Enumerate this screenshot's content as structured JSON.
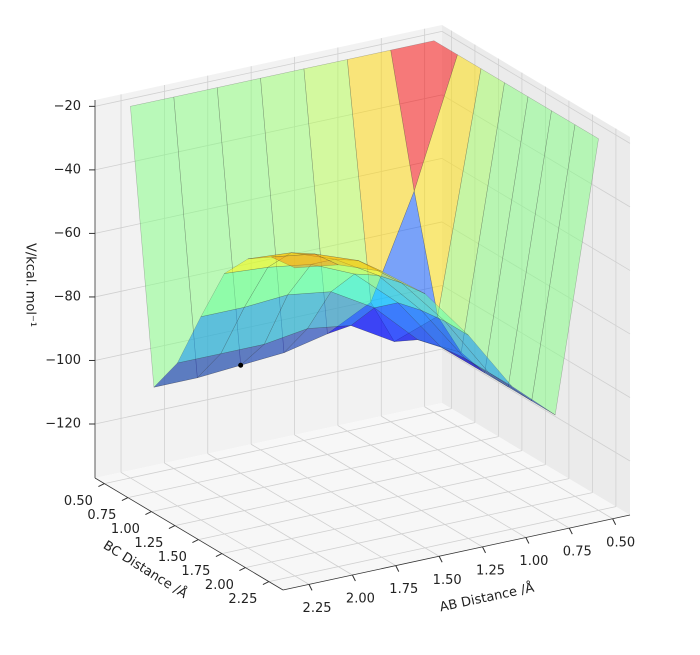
{
  "chart_data": {
    "type": "surface",
    "xlabel": "AB Distance /Å",
    "ylabel": "BC Distance /Å",
    "zlabel": "V/kcal. mol⁻¹",
    "colormap": "jet",
    "grid": true,
    "x": [
      0.5,
      0.75,
      1.0,
      1.25,
      1.5,
      1.75,
      2.0,
      2.25
    ],
    "y": [
      0.5,
      0.75,
      1.0,
      1.25,
      1.5,
      1.75,
      2.0,
      2.25
    ],
    "z": [
      [
        -20,
        -20,
        -20,
        -20,
        -20,
        -20,
        -20,
        -20
      ],
      [
        -20,
        -60,
        -95,
        -102,
        -104,
        -104,
        -104,
        -104
      ],
      [
        -20,
        -92,
        -100,
        -95,
        -93,
        -92,
        -92,
        -92
      ],
      [
        -20,
        -99,
        -92,
        -82,
        -76,
        -74,
        -73,
        -73
      ],
      [
        -20,
        -102,
        -90,
        -74,
        -64,
        -60,
        -58,
        -57
      ],
      [
        -20,
        -103,
        -92,
        -72,
        -58,
        -52,
        -48,
        -47
      ],
      [
        -20,
        -104,
        -92,
        -73,
        -56,
        -47,
        -43,
        -42
      ],
      [
        -20,
        -104,
        -92,
        -73,
        -55,
        -46,
        -41,
        -40
      ]
    ],
    "point": {
      "x": 1.75,
      "y": 0.75,
      "z": -103
    },
    "xlim": [
      0.4,
      2.4
    ],
    "ylim": [
      0.4,
      2.4
    ],
    "zlim": [
      -137,
      -18
    ],
    "xticks": [
      {
        "value": 0.5,
        "label": "0.50"
      },
      {
        "value": 0.75,
        "label": "0.75"
      },
      {
        "value": 1.0,
        "label": "1.00"
      },
      {
        "value": 1.25,
        "label": "1.25"
      },
      {
        "value": 1.5,
        "label": "1.50"
      },
      {
        "value": 1.75,
        "label": "1.75"
      },
      {
        "value": 2.0,
        "label": "2.00"
      },
      {
        "value": 2.25,
        "label": "2.25"
      }
    ],
    "yticks": [
      {
        "value": 0.5,
        "label": "0.50"
      },
      {
        "value": 0.75,
        "label": "0.75"
      },
      {
        "value": 1.0,
        "label": "1.00"
      },
      {
        "value": 1.25,
        "label": "1.25"
      },
      {
        "value": 1.5,
        "label": "1.50"
      },
      {
        "value": 1.75,
        "label": "1.75"
      },
      {
        "value": 2.0,
        "label": "2.00"
      },
      {
        "value": 2.25,
        "label": "2.25"
      }
    ],
    "zticks": [
      {
        "value": -120,
        "label": "−120"
      },
      {
        "value": -100,
        "label": "−100"
      },
      {
        "value": -80,
        "label": "−80"
      },
      {
        "value": -60,
        "label": "−60"
      },
      {
        "value": -40,
        "label": "−40"
      },
      {
        "value": -20,
        "label": "−20"
      }
    ]
  }
}
